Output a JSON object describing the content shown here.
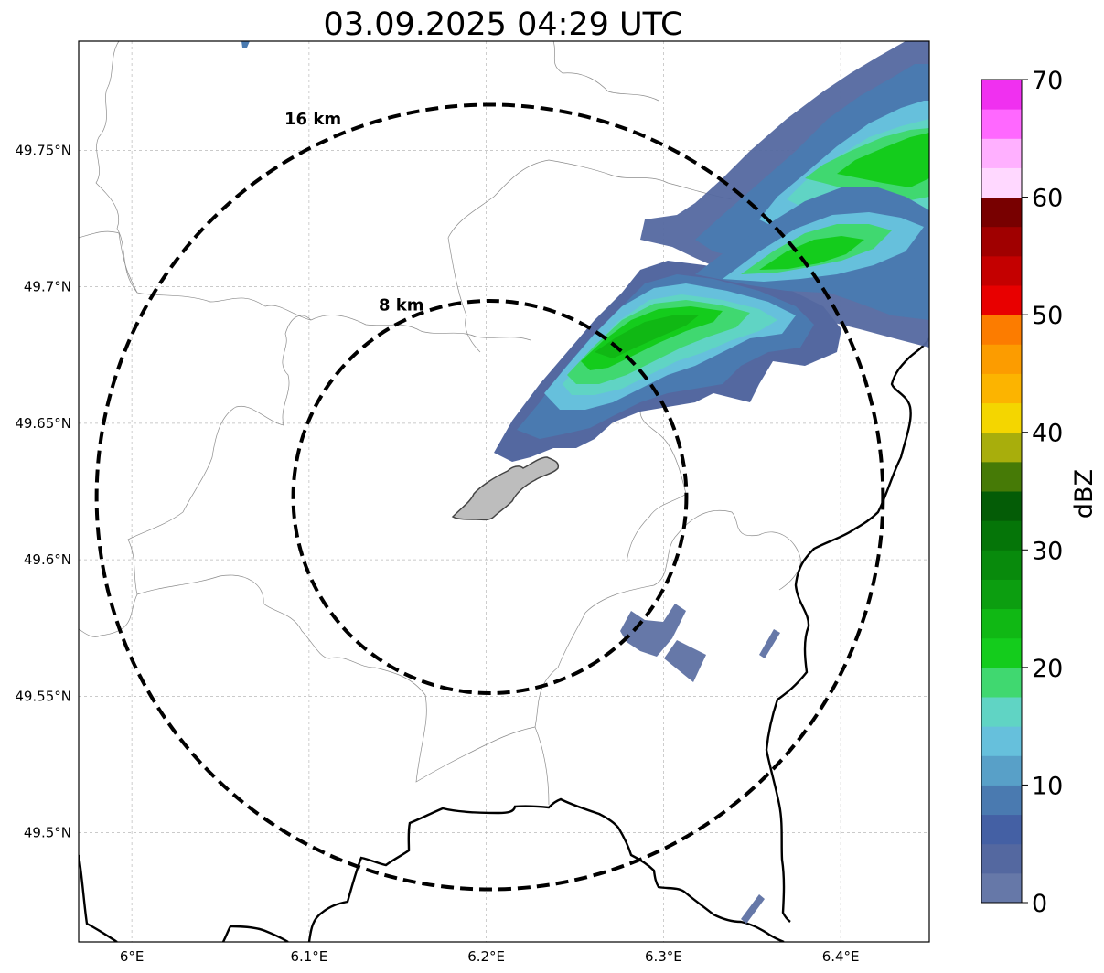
{
  "title": "03.09.2025 04:29 UTC",
  "map": {
    "lon_range": [
      5.97,
      6.45
    ],
    "lat_range": [
      49.46,
      49.79
    ],
    "center": {
      "lon": 6.202,
      "lat": 49.623
    },
    "x_ticks": [
      {
        "value": 6.0,
        "label": "6°E"
      },
      {
        "value": 6.1,
        "label": "6.1°E"
      },
      {
        "value": 6.2,
        "label": "6.2°E"
      },
      {
        "value": 6.3,
        "label": "6.3°E"
      },
      {
        "value": 6.4,
        "label": "6.4°E"
      }
    ],
    "y_ticks": [
      {
        "value": 49.75,
        "label": "49.75°N"
      },
      {
        "value": 49.7,
        "label": "49.7°N"
      },
      {
        "value": 49.65,
        "label": "49.65°N"
      },
      {
        "value": 49.6,
        "label": "49.6°N"
      },
      {
        "value": 49.55,
        "label": "49.55°N"
      },
      {
        "value": 49.5,
        "label": "49.5°N"
      }
    ],
    "grid": true,
    "rings": [
      {
        "radius_km": 8,
        "label": "8 km"
      },
      {
        "radius_km": 16,
        "label": "16 km"
      }
    ]
  },
  "colorbar": {
    "label": "dBZ",
    "min": 0,
    "max": 70,
    "step": 2.5,
    "ticks": [
      {
        "value": 0,
        "label": "0"
      },
      {
        "value": 10,
        "label": "10"
      },
      {
        "value": 20,
        "label": "20"
      },
      {
        "value": 30,
        "label": "30"
      },
      {
        "value": 40,
        "label": "40"
      },
      {
        "value": 50,
        "label": "50"
      },
      {
        "value": 60,
        "label": "60"
      },
      {
        "value": 70,
        "label": "70"
      }
    ],
    "colors": [
      "#6678a8",
      "#5468a0",
      "#4460a4",
      "#4a7ab0",
      "#58a0c8",
      "#66c0dc",
      "#60d4c4",
      "#40d870",
      "#14cc1c",
      "#10b814",
      "#0c9e10",
      "#088a0c",
      "#057508",
      "#045c06",
      "#467a06",
      "#a8ae0c",
      "#f4d600",
      "#fcb400",
      "#fc9c00",
      "#fc7c00",
      "#e80000",
      "#c40000",
      "#a00000",
      "#780000",
      "#ffd8ff",
      "#ffb0ff",
      "#ff68ff",
      "#f030f0"
    ]
  }
}
